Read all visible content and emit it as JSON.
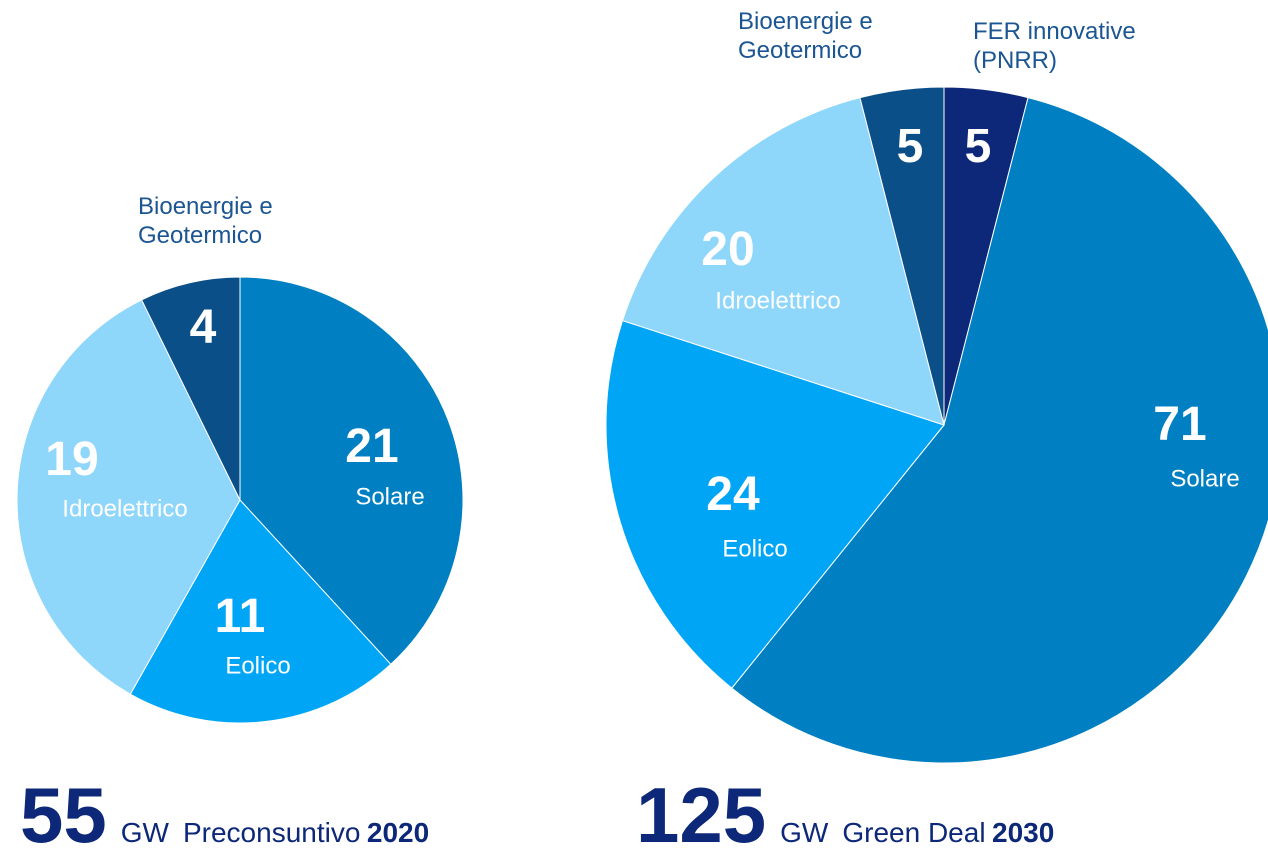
{
  "chart_data": [
    {
      "type": "pie",
      "categories": [
        "Solare",
        "Eolico",
        "Idroelettrico",
        "Bioenergie e\nGeotermico"
      ],
      "values": [
        21,
        11,
        19,
        4
      ],
      "colors": [
        "#0080c2",
        "#00a6f5",
        "#8fd6fb",
        "#0b4f89"
      ],
      "total": 55,
      "unit": "GW",
      "label": "Preconsuntivo",
      "year": "2020"
    },
    {
      "type": "pie",
      "categories": [
        "FER innovative\n(PNRR)",
        "Solare",
        "Eolico",
        "Idroelettrico",
        "Bioenergie e\nGeotermico"
      ],
      "values": [
        5,
        71,
        24,
        20,
        5
      ],
      "colors": [
        "#0d2878",
        "#0080c2",
        "#00a6f5",
        "#8fd6fb",
        "#0b4f89"
      ],
      "total": 125,
      "unit": "GW",
      "label": "Green Deal",
      "year": "2030"
    }
  ]
}
